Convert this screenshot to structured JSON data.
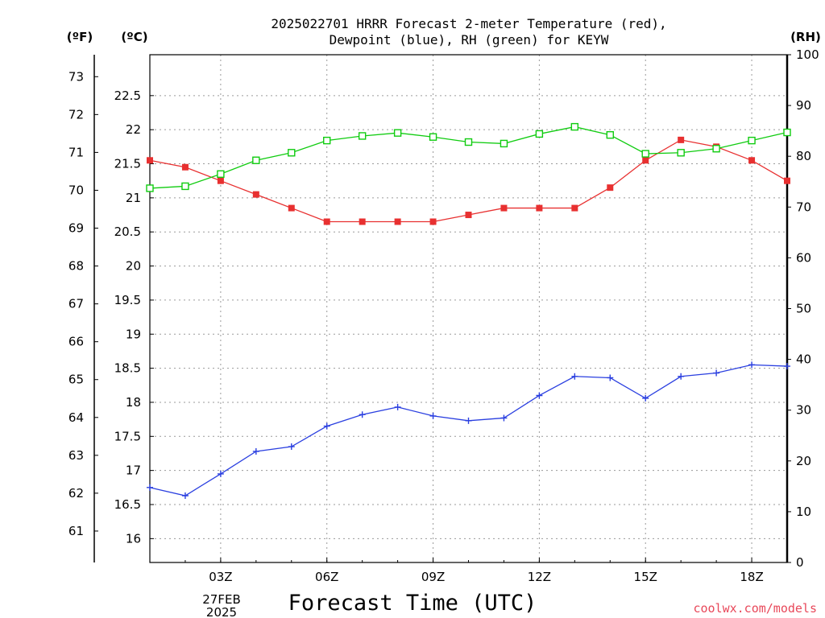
{
  "title_line1": "2025022701 HRRR Forecast 2-meter Temperature (red),",
  "title_line2": "Dewpoint (blue), RH (green) for KEYW",
  "units": {
    "fahrenheit": "(ºF)",
    "celsius": "(ºC)",
    "rh": "(RH)"
  },
  "xlabel": "Forecast Time (UTC)",
  "credit": "coolwx.com/models",
  "date_label": {
    "day": "27FEB",
    "year": "2025"
  },
  "colors": {
    "temperature": "#e83030",
    "dewpoint": "#2a3fe0",
    "rh": "#10cc10"
  },
  "chart_data": {
    "type": "line",
    "x_ticks": [
      {
        "hour": 3,
        "label": "03Z"
      },
      {
        "hour": 6,
        "label": "06Z"
      },
      {
        "hour": 9,
        "label": "09Z"
      },
      {
        "hour": 12,
        "label": "12Z"
      },
      {
        "hour": 15,
        "label": "15Z"
      },
      {
        "hour": 18,
        "label": "18Z"
      }
    ],
    "xlim": [
      1,
      19
    ],
    "x": [
      1,
      2,
      3,
      4,
      5,
      6,
      7,
      8,
      9,
      10,
      11,
      12,
      13,
      14,
      15,
      16,
      17,
      18,
      19
    ],
    "celsius_axis": {
      "ylim": [
        15.65,
        23.1
      ],
      "ticks": [
        16,
        16.5,
        17,
        17.5,
        18,
        18.5,
        19,
        19.5,
        20,
        20.5,
        21,
        21.5,
        22,
        22.5
      ]
    },
    "fahrenheit_axis": {
      "ylim": [
        60.17,
        73.58
      ],
      "ticks": [
        61,
        62,
        63,
        64,
        65,
        66,
        67,
        68,
        69,
        70,
        71,
        72,
        73
      ]
    },
    "rh_axis": {
      "ylim": [
        0,
        100
      ],
      "ticks": [
        0,
        10,
        20,
        30,
        40,
        50,
        60,
        70,
        80,
        90,
        100
      ]
    },
    "series": [
      {
        "name": "Temperature",
        "units": "C",
        "marker": "filled-square",
        "values": [
          21.55,
          21.45,
          21.25,
          21.05,
          20.85,
          20.65,
          20.65,
          20.65,
          20.65,
          20.75,
          20.85,
          20.85,
          20.85,
          21.15,
          21.55,
          21.85,
          21.75,
          21.55,
          21.25
        ]
      },
      {
        "name": "Dewpoint",
        "units": "C",
        "marker": "plus",
        "values": [
          16.75,
          16.63,
          16.95,
          17.28,
          17.35,
          17.65,
          17.82,
          17.93,
          17.8,
          17.73,
          17.77,
          18.1,
          18.38,
          18.36,
          18.06,
          18.38,
          18.43,
          18.55,
          18.53
        ]
      },
      {
        "name": "RH",
        "units": "%",
        "marker": "open-square",
        "values": [
          73.7,
          74.1,
          76.5,
          79.2,
          80.7,
          83.1,
          84.0,
          84.6,
          83.8,
          82.8,
          82.5,
          84.4,
          85.8,
          84.2,
          80.5,
          80.7,
          81.5,
          83.1,
          84.7
        ]
      }
    ]
  }
}
